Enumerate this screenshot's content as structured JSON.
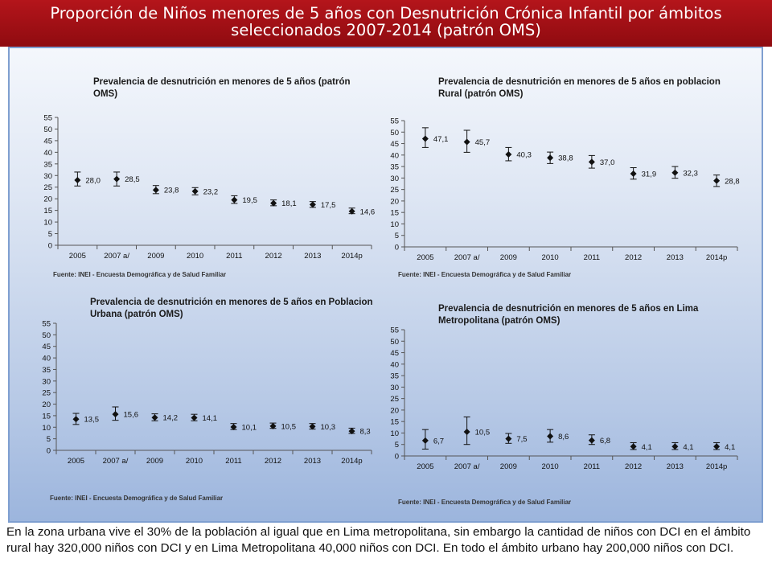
{
  "header": {
    "title_line1": "Proporción de Niños menores de 5 años con Desnutrición Crónica Infantil por ámbitos",
    "title_line2": "seleccionados 2007-2014 (patrón OMS)"
  },
  "footer": {
    "text": "En la zona urbana vive el 30% de la población al igual que en Lima metropolitana, sin embargo la cantidad de niños con DCI en el ámbito rural hay 320,000 niños con DCI y en Lima Metropolitana 40,000 niños con DCI. En todo el ámbito urbano hay 200,000 niños con DCI."
  },
  "chart_data": [
    {
      "type": "scatter",
      "title": "Prevalencia de desnutrición en menores de 5 años (patrón OMS)",
      "source": "Fuente: INEI - Encuesta Demográfica y de Salud Familiar",
      "categories": [
        "2005",
        "2007 a/",
        "2009",
        "2010",
        "2011",
        "2012",
        "2013",
        "2014p"
      ],
      "values": [
        28.0,
        28.5,
        23.8,
        23.2,
        19.5,
        18.1,
        17.5,
        14.6
      ],
      "labels": [
        "28,0",
        "28,5",
        "23,8",
        "23,2",
        "19,5",
        "18,1",
        "17,5",
        "14,6"
      ],
      "error_low": [
        25.5,
        25.5,
        22.2,
        21.7,
        18.0,
        17.0,
        16.3,
        13.6
      ],
      "error_high": [
        31.5,
        31.5,
        25.7,
        24.8,
        21.3,
        19.5,
        18.8,
        16.0
      ],
      "yticks": [
        "0",
        "5",
        "10",
        "15",
        "20",
        "25",
        "30",
        "35",
        "40",
        "45",
        "50",
        "55"
      ],
      "ylim": [
        0,
        55
      ],
      "grid": false
    },
    {
      "type": "scatter",
      "title": "Prevalencia de desnutrición en menores de 5 años en poblacion Rural (patrón OMS)",
      "source": "Fuente: INEI - Encuesta Demográfica y de Salud Familiar",
      "categories": [
        "2005",
        "2007 a/",
        "2009",
        "2010",
        "2011",
        "2012",
        "2013",
        "2014p"
      ],
      "values": [
        47.1,
        45.7,
        40.3,
        38.8,
        37.0,
        31.9,
        32.3,
        28.8
      ],
      "labels": [
        "47,1",
        "45,7",
        "40,3",
        "38,8",
        "37,0",
        "31,9",
        "32,3",
        "28,8"
      ],
      "error_low": [
        43.3,
        41.2,
        37.5,
        36.3,
        34.3,
        29.5,
        29.9,
        26.3
      ],
      "error_high": [
        51.9,
        50.8,
        43.3,
        41.3,
        39.8,
        34.5,
        35.0,
        31.3
      ],
      "yticks": [
        "0",
        "5",
        "10",
        "15",
        "20",
        "25",
        "30",
        "35",
        "40",
        "45",
        "50",
        "55"
      ],
      "ylim": [
        0,
        55
      ],
      "grid": false
    },
    {
      "type": "scatter",
      "title": "Prevalencia de desnutrición en menores de 5 años en Poblacion Urbana (patrón OMS)",
      "source": "Fuente: INEI - Encuesta Demográfica y de Salud Familiar",
      "categories": [
        "2005",
        "2007 a/",
        "2009",
        "2010",
        "2011",
        "2012",
        "2013",
        "2014p"
      ],
      "values": [
        13.5,
        15.6,
        14.2,
        14.1,
        10.1,
        10.5,
        10.3,
        8.3
      ],
      "labels": [
        "13,5",
        "15,6",
        "14,2",
        "14,1",
        "10,1",
        "10,5",
        "10,3",
        "8,3"
      ],
      "error_low": [
        11.2,
        13.0,
        12.8,
        12.8,
        9.0,
        9.5,
        9.2,
        7.3
      ],
      "error_high": [
        16.0,
        18.8,
        15.8,
        15.6,
        11.6,
        11.8,
        11.6,
        9.6
      ],
      "yticks": [
        "0",
        "5",
        "10",
        "15",
        "20",
        "25",
        "30",
        "35",
        "40",
        "45",
        "50",
        "55"
      ],
      "ylim": [
        0,
        55
      ],
      "grid": false
    },
    {
      "type": "scatter",
      "title": "Prevalencia de desnutrición en menores de 5 años en Lima Metropolitana (patrón OMS)",
      "source": "Fuente: INEI - Encuesta Demográfica y de Salud Familiar",
      "categories": [
        "2005",
        "2007 a/",
        "2009",
        "2010",
        "2011",
        "2012",
        "2013",
        "2014p"
      ],
      "values": [
        6.7,
        10.5,
        7.5,
        8.6,
        6.8,
        4.1,
        4.1,
        4.1
      ],
      "labels": [
        "6,7",
        "10,5",
        "7,5",
        "8,6",
        "6,8",
        "4,1",
        "4,1",
        "4,1"
      ],
      "error_low": [
        3.0,
        5.0,
        5.5,
        6.0,
        5.0,
        2.8,
        2.8,
        2.8
      ],
      "error_high": [
        11.5,
        17.0,
        9.8,
        11.5,
        9.2,
        5.8,
        5.8,
        5.8
      ],
      "yticks": [
        "0",
        "5",
        "10",
        "15",
        "20",
        "25",
        "30",
        "35",
        "40",
        "45",
        "50",
        "55"
      ],
      "ylim": [
        0,
        55
      ],
      "grid": false
    }
  ]
}
